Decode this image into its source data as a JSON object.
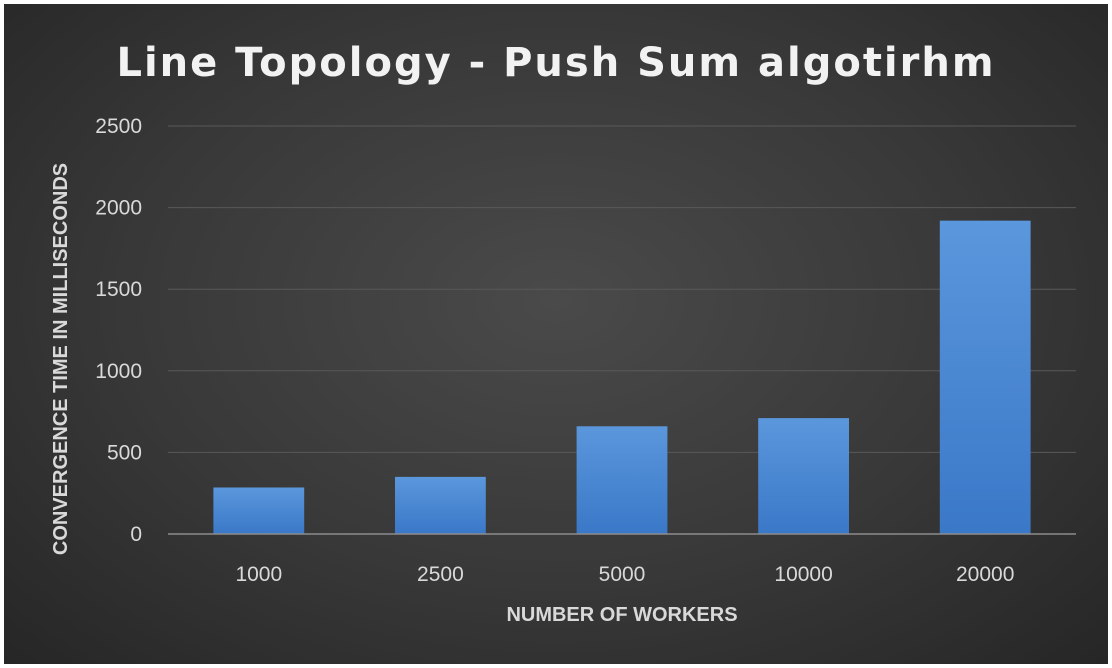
{
  "chart_data": {
    "type": "bar",
    "title": "Line Topology - Push Sum algotirhm",
    "xlabel": "NUMBER OF WORKERS",
    "ylabel": "CONVERGENCE TIME IN MILLISECONDS",
    "categories": [
      "1000",
      "2500",
      "5000",
      "10000",
      "20000"
    ],
    "values": [
      285,
      350,
      660,
      710,
      1920
    ],
    "ylim": [
      0,
      2500
    ],
    "yticks": [
      "0",
      "500",
      "1000",
      "1500",
      "2000",
      "2500"
    ],
    "grid": true,
    "bar_color": "#4a8ad8"
  }
}
